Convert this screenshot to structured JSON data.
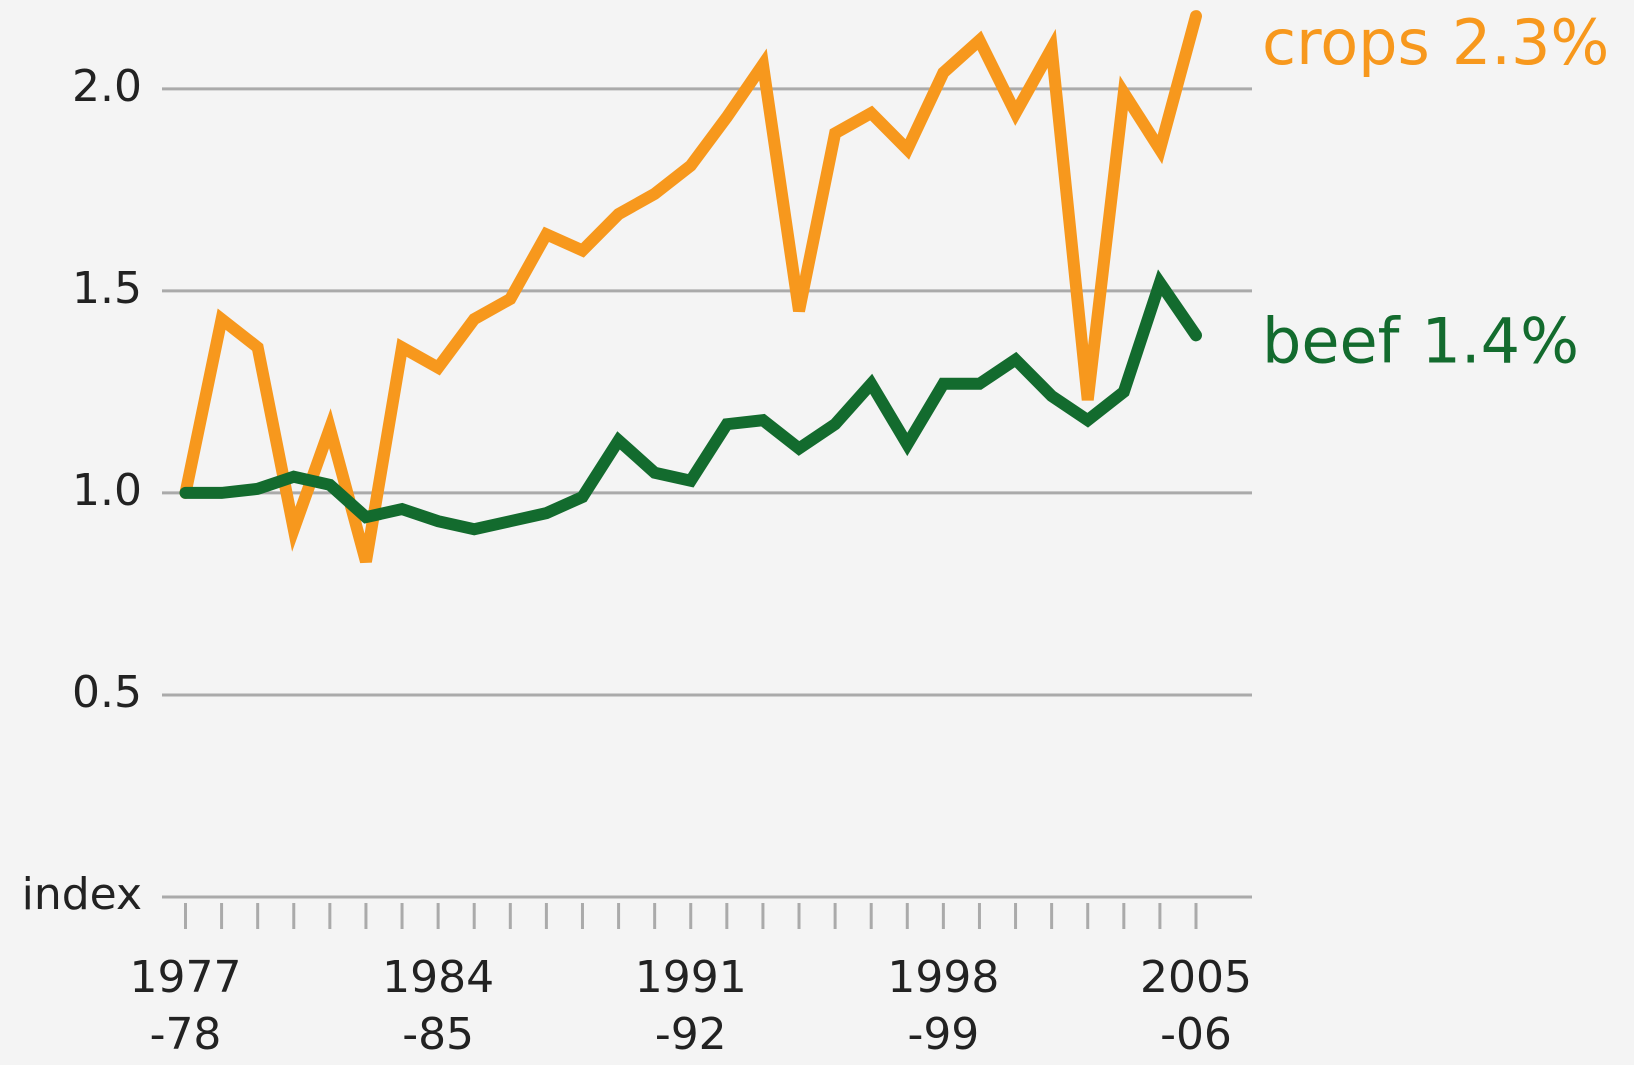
{
  "chart_data": {
    "type": "line",
    "categories": [
      "1977\n-78",
      null,
      null,
      null,
      null,
      null,
      null,
      "1984\n-85",
      null,
      null,
      null,
      null,
      null,
      null,
      "1991\n-92",
      null,
      null,
      null,
      null,
      null,
      null,
      "1998\n-99",
      null,
      null,
      null,
      null,
      null,
      null,
      "2005\n-06"
    ],
    "series": [
      {
        "name": "crops",
        "label": "2.3%",
        "color": "#f7981d",
        "values": [
          1.0,
          1.43,
          1.36,
          0.91,
          1.16,
          0.83,
          1.36,
          1.31,
          1.43,
          1.48,
          1.64,
          1.6,
          1.69,
          1.74,
          1.81,
          1.93,
          2.06,
          1.45,
          1.89,
          1.94,
          1.85,
          2.04,
          2.12,
          1.94,
          2.1,
          1.23,
          1.99,
          1.85,
          2.18
        ]
      },
      {
        "name": "beef",
        "label": "1.4%",
        "color": "#136b2e",
        "values": [
          1.0,
          1.0,
          1.01,
          1.04,
          1.02,
          0.94,
          0.96,
          0.93,
          0.91,
          0.93,
          0.95,
          0.99,
          1.13,
          1.05,
          1.03,
          1.17,
          1.18,
          1.11,
          1.17,
          1.27,
          1.12,
          1.27,
          1.27,
          1.33,
          1.24,
          1.18,
          1.25,
          1.52,
          1.39
        ]
      }
    ],
    "ylim": [
      0,
      2.2
    ],
    "yticks": [
      {
        "value": 0,
        "label": "index"
      },
      0.5,
      {
        "value": 1.0,
        "label": "1.0"
      },
      1.5,
      {
        "value": 2.0,
        "label": "2.0"
      }
    ],
    "grid": true
  }
}
